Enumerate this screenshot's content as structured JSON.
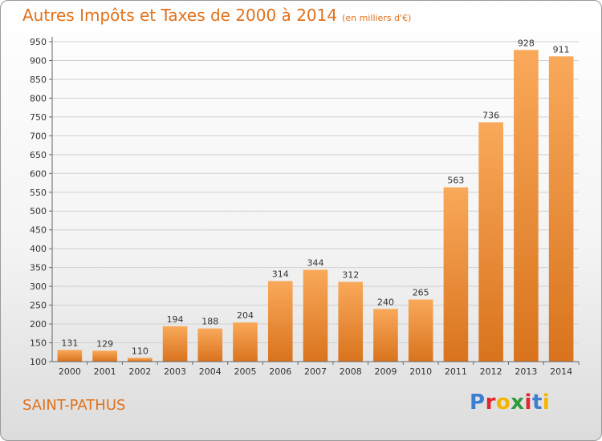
{
  "header": {
    "title": "Autres Impôts et Taxes de 2000 à 2014",
    "unit": "(en milliers d'€)"
  },
  "footer": {
    "city": "SAINT-PATHUS",
    "logo": "Proxiti"
  },
  "colors": {
    "accent": "#e0711a",
    "bar_light": "#f9a95a",
    "bar_dark": "#d9731d",
    "logo_letters": [
      "#3b7fd0",
      "#e3262d",
      "#f4b400",
      "#2f9a3b",
      "#e3262d",
      "#3b7fd0",
      "#f4b400"
    ]
  },
  "chart_data": {
    "type": "bar",
    "title": "Autres Impôts et Taxes de 2000 à 2014",
    "xlabel": "",
    "ylabel": "",
    "categories": [
      "2000",
      "2001",
      "2002",
      "2003",
      "2004",
      "2005",
      "2006",
      "2007",
      "2008",
      "2009",
      "2010",
      "2011",
      "2012",
      "2013",
      "2014"
    ],
    "values": [
      131,
      129,
      110,
      194,
      188,
      204,
      314,
      344,
      312,
      240,
      265,
      563,
      736,
      928,
      911
    ],
    "ylim": [
      100,
      950
    ],
    "yticks": [
      100,
      150,
      200,
      250,
      300,
      350,
      400,
      450,
      500,
      550,
      600,
      650,
      700,
      750,
      800,
      850,
      900,
      950
    ],
    "grid": true,
    "data_labels": true
  }
}
